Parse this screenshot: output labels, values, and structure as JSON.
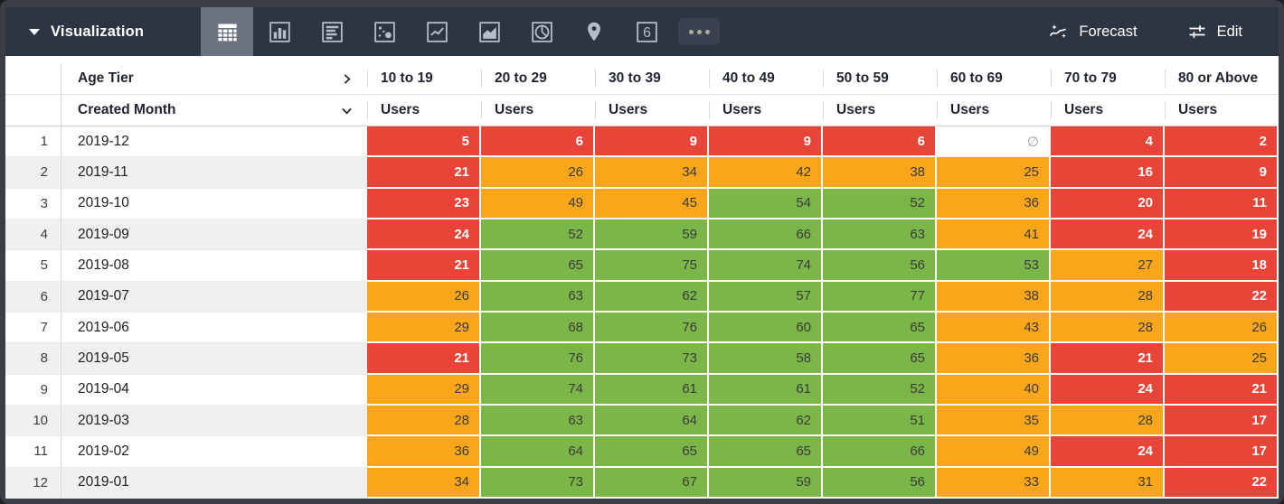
{
  "toolbar": {
    "title": "Visualization",
    "tabs": [
      {
        "name": "table",
        "selected": true
      },
      {
        "name": "bar-chart",
        "selected": false
      },
      {
        "name": "row-chart",
        "selected": false
      },
      {
        "name": "scatter",
        "selected": false
      },
      {
        "name": "line-chart",
        "selected": false
      },
      {
        "name": "area-chart",
        "selected": false
      },
      {
        "name": "pie-chart",
        "selected": false
      },
      {
        "name": "map",
        "selected": false
      },
      {
        "name": "single-value",
        "selected": false
      },
      {
        "name": "more-options",
        "selected": false
      }
    ],
    "single_value_glyph": "6",
    "forecast_label": "Forecast",
    "edit_label": "Edit"
  },
  "table": {
    "pivot_label": "Age Tier",
    "row_label": "Created Month",
    "measure_label": "Users",
    "null_symbol": "∅",
    "columns": [
      "10 to 19",
      "20 to 29",
      "30 to 39",
      "40 to 49",
      "50 to 59",
      "60 to 69",
      "70 to 79",
      "80 or Above"
    ],
    "rows": [
      {
        "index": "1",
        "month": "2019-12",
        "cells": [
          {
            "v": "5",
            "c": "red"
          },
          {
            "v": "6",
            "c": "red"
          },
          {
            "v": "9",
            "c": "red"
          },
          {
            "v": "9",
            "c": "red"
          },
          {
            "v": "6",
            "c": "red"
          },
          {
            "v": "∅",
            "c": "null"
          },
          {
            "v": "4",
            "c": "red"
          },
          {
            "v": "2",
            "c": "red"
          }
        ]
      },
      {
        "index": "2",
        "month": "2019-11",
        "cells": [
          {
            "v": "21",
            "c": "red"
          },
          {
            "v": "26",
            "c": "orange"
          },
          {
            "v": "34",
            "c": "orange"
          },
          {
            "v": "42",
            "c": "orange"
          },
          {
            "v": "38",
            "c": "orange"
          },
          {
            "v": "25",
            "c": "orange"
          },
          {
            "v": "16",
            "c": "red"
          },
          {
            "v": "9",
            "c": "red"
          }
        ]
      },
      {
        "index": "3",
        "month": "2019-10",
        "cells": [
          {
            "v": "23",
            "c": "red"
          },
          {
            "v": "49",
            "c": "orange"
          },
          {
            "v": "45",
            "c": "orange"
          },
          {
            "v": "54",
            "c": "green"
          },
          {
            "v": "52",
            "c": "green"
          },
          {
            "v": "36",
            "c": "orange"
          },
          {
            "v": "20",
            "c": "red"
          },
          {
            "v": "11",
            "c": "red"
          }
        ]
      },
      {
        "index": "4",
        "month": "2019-09",
        "cells": [
          {
            "v": "24",
            "c": "red"
          },
          {
            "v": "52",
            "c": "green"
          },
          {
            "v": "59",
            "c": "green"
          },
          {
            "v": "66",
            "c": "green"
          },
          {
            "v": "63",
            "c": "green"
          },
          {
            "v": "41",
            "c": "orange"
          },
          {
            "v": "24",
            "c": "red"
          },
          {
            "v": "19",
            "c": "red"
          }
        ]
      },
      {
        "index": "5",
        "month": "2019-08",
        "cells": [
          {
            "v": "21",
            "c": "red"
          },
          {
            "v": "65",
            "c": "green"
          },
          {
            "v": "75",
            "c": "green"
          },
          {
            "v": "74",
            "c": "green"
          },
          {
            "v": "56",
            "c": "green"
          },
          {
            "v": "53",
            "c": "green"
          },
          {
            "v": "27",
            "c": "orange"
          },
          {
            "v": "18",
            "c": "red"
          }
        ]
      },
      {
        "index": "6",
        "month": "2019-07",
        "cells": [
          {
            "v": "26",
            "c": "orange"
          },
          {
            "v": "63",
            "c": "green"
          },
          {
            "v": "62",
            "c": "green"
          },
          {
            "v": "57",
            "c": "green"
          },
          {
            "v": "77",
            "c": "green"
          },
          {
            "v": "38",
            "c": "orange"
          },
          {
            "v": "28",
            "c": "orange"
          },
          {
            "v": "22",
            "c": "red"
          }
        ]
      },
      {
        "index": "7",
        "month": "2019-06",
        "cells": [
          {
            "v": "29",
            "c": "orange"
          },
          {
            "v": "68",
            "c": "green"
          },
          {
            "v": "76",
            "c": "green"
          },
          {
            "v": "60",
            "c": "green"
          },
          {
            "v": "65",
            "c": "green"
          },
          {
            "v": "43",
            "c": "orange"
          },
          {
            "v": "28",
            "c": "orange"
          },
          {
            "v": "26",
            "c": "orange"
          }
        ]
      },
      {
        "index": "8",
        "month": "2019-05",
        "cells": [
          {
            "v": "21",
            "c": "red"
          },
          {
            "v": "76",
            "c": "green"
          },
          {
            "v": "73",
            "c": "green"
          },
          {
            "v": "58",
            "c": "green"
          },
          {
            "v": "65",
            "c": "green"
          },
          {
            "v": "36",
            "c": "orange"
          },
          {
            "v": "21",
            "c": "red"
          },
          {
            "v": "25",
            "c": "orange"
          }
        ]
      },
      {
        "index": "9",
        "month": "2019-04",
        "cells": [
          {
            "v": "29",
            "c": "orange"
          },
          {
            "v": "74",
            "c": "green"
          },
          {
            "v": "61",
            "c": "green"
          },
          {
            "v": "61",
            "c": "green"
          },
          {
            "v": "52",
            "c": "green"
          },
          {
            "v": "40",
            "c": "orange"
          },
          {
            "v": "24",
            "c": "red"
          },
          {
            "v": "21",
            "c": "red"
          }
        ]
      },
      {
        "index": "10",
        "month": "2019-03",
        "cells": [
          {
            "v": "28",
            "c": "orange"
          },
          {
            "v": "63",
            "c": "green"
          },
          {
            "v": "64",
            "c": "green"
          },
          {
            "v": "62",
            "c": "green"
          },
          {
            "v": "51",
            "c": "green"
          },
          {
            "v": "35",
            "c": "orange"
          },
          {
            "v": "28",
            "c": "orange"
          },
          {
            "v": "17",
            "c": "red"
          }
        ]
      },
      {
        "index": "11",
        "month": "2019-02",
        "cells": [
          {
            "v": "36",
            "c": "orange"
          },
          {
            "v": "64",
            "c": "green"
          },
          {
            "v": "65",
            "c": "green"
          },
          {
            "v": "65",
            "c": "green"
          },
          {
            "v": "66",
            "c": "green"
          },
          {
            "v": "49",
            "c": "orange"
          },
          {
            "v": "24",
            "c": "red"
          },
          {
            "v": "17",
            "c": "red"
          }
        ]
      },
      {
        "index": "12",
        "month": "2019-01",
        "cells": [
          {
            "v": "34",
            "c": "orange"
          },
          {
            "v": "73",
            "c": "green"
          },
          {
            "v": "67",
            "c": "green"
          },
          {
            "v": "59",
            "c": "green"
          },
          {
            "v": "56",
            "c": "green"
          },
          {
            "v": "33",
            "c": "orange"
          },
          {
            "v": "31",
            "c": "orange"
          },
          {
            "v": "22",
            "c": "red"
          }
        ]
      }
    ]
  },
  "colors": {
    "cell_red": "#e84438",
    "cell_orange": "#f9a61b",
    "cell_green": "#7ab648",
    "null_text": "#9aa0a6",
    "toolbar_bg": "#2d3442",
    "tab_selected_bg": "#6b7280",
    "icon_gray": "#b7bdc7",
    "frame": "#3a3f46"
  }
}
